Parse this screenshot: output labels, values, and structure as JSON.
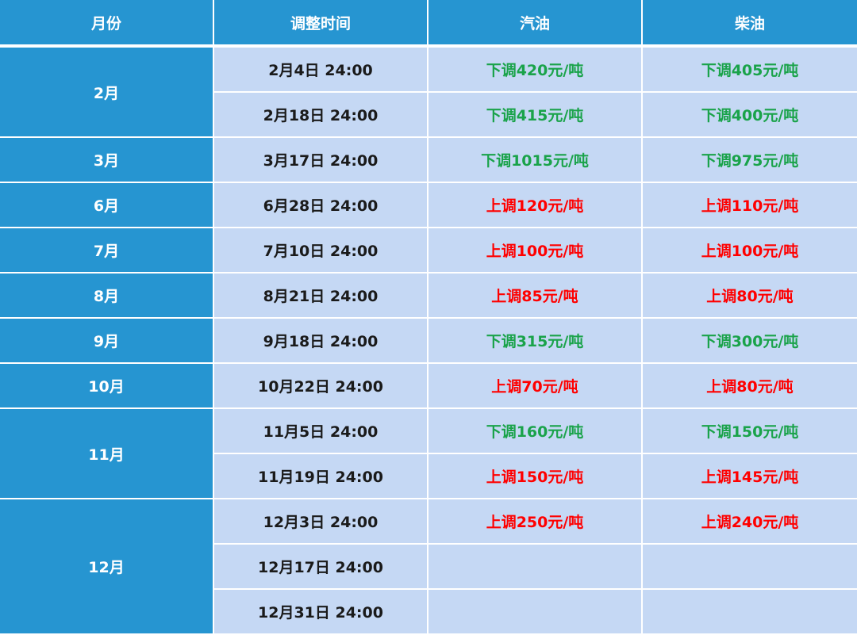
{
  "header": {
    "month": "月份",
    "time": "调整时间",
    "gasoline": "汽油",
    "diesel": "柴油"
  },
  "rows": [
    {
      "month": "2月",
      "time": "2月4日 24:00",
      "gasoline": "下调420元/吨",
      "diesel": "下调405元/吨",
      "gasoline_dir": "down",
      "diesel_dir": "down"
    },
    {
      "time": "2月18日 24:00",
      "gasoline": "下调415元/吨",
      "diesel": "下调400元/吨",
      "gasoline_dir": "down",
      "diesel_dir": "down"
    },
    {
      "month": "3月",
      "time": "3月17日 24:00",
      "gasoline": "下调1015元/吨",
      "diesel": "下调975元/吨",
      "gasoline_dir": "down",
      "diesel_dir": "down"
    },
    {
      "month": "6月",
      "time": "6月28日 24:00",
      "gasoline": "上调120元/吨",
      "diesel": "上调110元/吨",
      "gasoline_dir": "up",
      "diesel_dir": "up"
    },
    {
      "month": "7月",
      "time": "7月10日 24:00",
      "gasoline": "上调100元/吨",
      "diesel": "上调100元/吨",
      "gasoline_dir": "up",
      "diesel_dir": "up"
    },
    {
      "month": "8月",
      "time": "8月21日 24:00",
      "gasoline": "上调85元/吨",
      "diesel": "上调80元/吨",
      "gasoline_dir": "up",
      "diesel_dir": "up"
    },
    {
      "month": "9月",
      "time": "9月18日 24:00",
      "gasoline": "下调315元/吨",
      "diesel": "下调300元/吨",
      "gasoline_dir": "down",
      "diesel_dir": "down"
    },
    {
      "month": "10月",
      "time": "10月22日 24:00",
      "gasoline": "上调70元/吨",
      "diesel": "上调80元/吨",
      "gasoline_dir": "up",
      "diesel_dir": "up"
    },
    {
      "month": "11月",
      "time": "11月5日 24:00",
      "gasoline": "下调160元/吨",
      "diesel": "下调150元/吨",
      "gasoline_dir": "down",
      "diesel_dir": "down"
    },
    {
      "time": "11月19日 24:00",
      "gasoline": "上调150元/吨",
      "diesel": "上调145元/吨",
      "gasoline_dir": "up",
      "diesel_dir": "up"
    },
    {
      "month": "12月",
      "time": "12月3日 24:00",
      "gasoline": "上调250元/吨",
      "diesel": "上调240元/吨",
      "gasoline_dir": "up",
      "diesel_dir": "up"
    },
    {
      "time": "12月17日 24:00",
      "gasoline": "",
      "diesel": ""
    },
    {
      "time": "12月31日 24:00",
      "gasoline": "",
      "diesel": ""
    }
  ],
  "colors": {
    "header_bg": "#2695d1",
    "month_bg": "#2695d1",
    "row_bg": "#c5d8f4",
    "down": "#1aa34a",
    "up": "#ff0000"
  }
}
